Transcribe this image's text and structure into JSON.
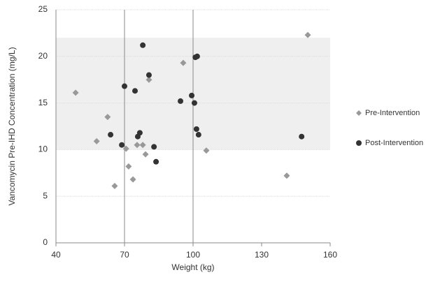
{
  "chart_data": {
    "type": "scatter",
    "x_label": "Weight (kg)",
    "y_label": "Vancomycin Pre-IHD Concentration (mg/L)",
    "xlim": [
      40,
      160
    ],
    "xticks": [
      40,
      70,
      100,
      130,
      160
    ],
    "ylim": [
      0,
      25
    ],
    "yticks": [
      0,
      5,
      10,
      15,
      20,
      25
    ],
    "grid": true,
    "legend": "right",
    "shaded_band_y": [
      10,
      22
    ],
    "reference_lines_x": [
      70,
      100
    ],
    "series": [
      {
        "name": "Pre-Intervention",
        "color": "#999999",
        "marker": "diamond",
        "x": [
          48.6,
          57.8,
          62.6,
          65.7,
          70.7,
          71.8,
          73.7,
          75.5,
          78,
          79.2,
          80.7,
          95.7,
          105.8,
          141,
          150.2
        ],
        "values": [
          16.1,
          10.9,
          13.5,
          6.1,
          10.1,
          8.2,
          6.8,
          10.5,
          10.5,
          9.5,
          17.5,
          19.3,
          9.9,
          7.2,
          22.3
        ]
      },
      {
        "name": "Post-Intervention",
        "color": "#333333",
        "marker": "circle",
        "x": [
          63.9,
          68.8,
          70,
          74.6,
          75.8,
          76.7,
          78,
          80.7,
          82.9,
          83.8,
          94.5,
          99.4,
          100.6,
          101,
          101.8,
          101.5,
          102.4,
          147.5
        ],
        "values": [
          11.6,
          10.5,
          16.8,
          16.3,
          11.4,
          11.8,
          21.2,
          18,
          10.3,
          8.7,
          15.2,
          15.8,
          15,
          19.9,
          20,
          12.2,
          11.6,
          11.4
        ]
      }
    ]
  }
}
